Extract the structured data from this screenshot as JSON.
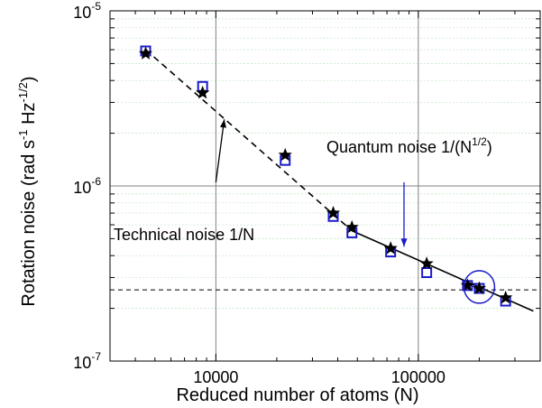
{
  "chart_data": {
    "type": "scatter",
    "x_scale": "log",
    "y_scale": "log",
    "xlim": [
      3000,
      400000
    ],
    "ylim": [
      1e-07,
      1e-05
    ],
    "xlabel": "Reduced number of atoms (N)",
    "ylabel_main": "Rotation noise (rad s",
    "ylabel_sup1": "-1",
    "ylabel_mid": " Hz",
    "ylabel_sup2": "-1/2",
    "ylabel_end": ")",
    "x_ticks": [
      {
        "value": 10000,
        "label": "10000"
      },
      {
        "value": 100000,
        "label": "100000"
      }
    ],
    "y_ticks": [
      {
        "value": 1e-05,
        "base": "10",
        "exp": "-5"
      },
      {
        "value": 1e-06,
        "base": "10",
        "exp": "-6"
      },
      {
        "value": 1e-07,
        "base": "10",
        "exp": "-7"
      }
    ],
    "grid": true,
    "series": [
      {
        "marker": "open-square",
        "color": "#1a1acc",
        "points": [
          [
            4500,
            5.9e-06
          ],
          [
            8600,
            3.7e-06
          ],
          [
            22000,
            1.4e-06
          ],
          [
            38000,
            6.7e-07
          ],
          [
            47000,
            5.4e-07
          ],
          [
            73000,
            4.2e-07
          ],
          [
            110000,
            3.2e-07
          ],
          [
            175000,
            2.7e-07
          ],
          [
            200000,
            2.6e-07
          ],
          [
            270000,
            2.2e-07
          ]
        ]
      },
      {
        "marker": "filled-star",
        "color": "#000000",
        "points": [
          [
            4500,
            5.7e-06
          ],
          [
            8600,
            3.4e-06
          ],
          [
            22000,
            1.5e-06
          ],
          [
            38000,
            7e-07
          ],
          [
            47000,
            5.8e-07
          ],
          [
            73000,
            4.4e-07
          ],
          [
            110000,
            3.6e-07
          ],
          [
            175000,
            2.7e-07
          ],
          [
            200000,
            2.6e-07
          ],
          [
            270000,
            2.3e-07
          ]
        ]
      }
    ],
    "fits": [
      {
        "style": "dashed",
        "from": [
          4500,
          6e-06
        ],
        "to": [
          47000,
          5.55e-07
        ]
      },
      {
        "style": "solid",
        "from": [
          47000,
          5.55e-07
        ],
        "to": [
          370000,
          1.93e-07
        ]
      },
      {
        "style": "dashed-thin",
        "from": [
          3000,
          2.55e-07
        ],
        "to": [
          400000,
          2.55e-07
        ]
      }
    ],
    "annotations": [
      {
        "text": "Technical noise 1/N",
        "arrow_from": [
          10000,
          1.05e-06
        ],
        "arrow_to": [
          11000,
          2.4e-06
        ],
        "color": "#000000"
      },
      {
        "text_main": "Quantum noise 1/(N",
        "text_sup": "1/2",
        "text_end": ")",
        "arrow_from": [
          85000,
          1.05e-06
        ],
        "arrow_to": [
          85000,
          4.5e-07
        ],
        "color": "#1a1acc"
      }
    ],
    "highlight_circle": {
      "center": [
        200000,
        2.65e-07
      ],
      "color": "#1a1acc"
    }
  }
}
